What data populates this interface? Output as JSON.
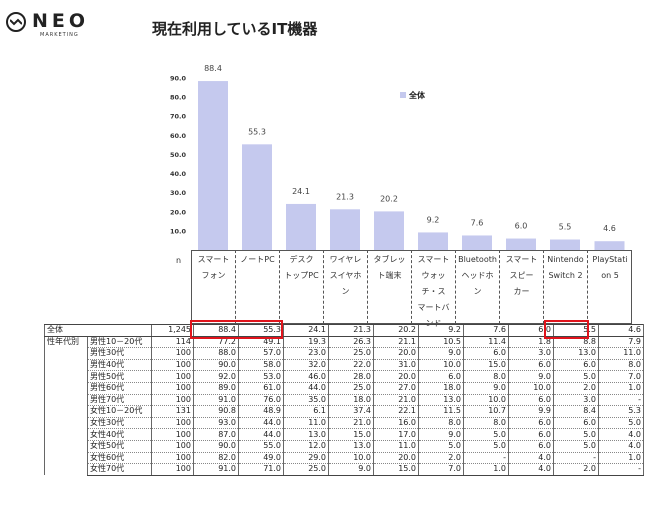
{
  "brand": {
    "name": "NEO",
    "sub": "MARKETING",
    "icon": "neo-wave-icon"
  },
  "title": "現在利用しているIT機器",
  "chart_data": {
    "type": "bar",
    "legend": "全体",
    "legend_position": "top-right",
    "bar_color": "#c5c9ee",
    "highlight_color": "#e0141c",
    "yticks": [
      "10.0",
      "20.0",
      "30.0",
      "40.0",
      "50.0",
      "60.0",
      "70.0",
      "80.0",
      "90.0"
    ],
    "ylim": [
      0,
      90
    ],
    "grid": false,
    "categories": [
      "スマートフォン",
      "ノートPC",
      "デスクトップPC",
      "ワイヤレスイヤホン",
      "タブレット端末",
      "スマートウォッチ・スマートバンド",
      "Bluetoothヘッドホン",
      "スマートスピーカー",
      "Nintendo Switch 2",
      "PlayStation 5"
    ],
    "values": [
      88.4,
      55.3,
      24.1,
      21.3,
      20.2,
      9.2,
      7.6,
      6.0,
      5.5,
      4.6
    ],
    "value_labels": [
      "88.4",
      "55.3",
      "24.1",
      "21.3",
      "20.2",
      "9.2",
      "7.6",
      "6.0",
      "5.5",
      "4.6"
    ]
  },
  "header_cells": {
    "n": "n",
    "cat_lines": [
      [
        "スマート",
        "フォン"
      ],
      [
        "ノートPC"
      ],
      [
        "デスク",
        "トップPC"
      ],
      [
        "ワイヤレ",
        "スイヤホ",
        "ン"
      ],
      [
        "タブレッ",
        "ト端末"
      ],
      [
        "スマート",
        "ウォッ",
        "チ・ス",
        "マートバ",
        "ンド"
      ],
      [
        "Bluetooth",
        "ヘッドホ",
        "ン"
      ],
      [
        "スマート",
        "スピー",
        "カー"
      ],
      [
        "Nintendo",
        "Switch 2"
      ],
      [
        "PlayStati",
        "on 5"
      ]
    ]
  },
  "table": {
    "total": {
      "label": "全体",
      "n": "1,245",
      "values": [
        "88.4",
        "55.3",
        "24.1",
        "21.3",
        "20.2",
        "9.2",
        "7.6",
        "6.0",
        "5.5",
        "4.6"
      ]
    },
    "group_label": "性年代別",
    "rows": [
      {
        "label": "男性10－20代",
        "n": "114",
        "values": [
          "77.2",
          "49.1",
          "19.3",
          "26.3",
          "21.1",
          "10.5",
          "11.4",
          "1.8",
          "8.8",
          "7.9"
        ]
      },
      {
        "label": "男性30代",
        "n": "100",
        "values": [
          "88.0",
          "57.0",
          "23.0",
          "25.0",
          "20.0",
          "9.0",
          "6.0",
          "3.0",
          "13.0",
          "11.0"
        ]
      },
      {
        "label": "男性40代",
        "n": "100",
        "values": [
          "90.0",
          "58.0",
          "32.0",
          "22.0",
          "31.0",
          "10.0",
          "15.0",
          "6.0",
          "6.0",
          "8.0"
        ]
      },
      {
        "label": "男性50代",
        "n": "100",
        "values": [
          "92.0",
          "53.0",
          "46.0",
          "28.0",
          "20.0",
          "6.0",
          "8.0",
          "9.0",
          "5.0",
          "7.0"
        ]
      },
      {
        "label": "男性60代",
        "n": "100",
        "values": [
          "89.0",
          "61.0",
          "44.0",
          "25.0",
          "27.0",
          "18.0",
          "9.0",
          "10.0",
          "2.0",
          "1.0"
        ]
      },
      {
        "label": "男性70代",
        "n": "100",
        "values": [
          "91.0",
          "76.0",
          "35.0",
          "18.0",
          "21.0",
          "13.0",
          "10.0",
          "6.0",
          "3.0",
          "-"
        ]
      },
      {
        "label": "女性10－20代",
        "n": "131",
        "values": [
          "90.8",
          "48.9",
          "6.1",
          "37.4",
          "22.1",
          "11.5",
          "10.7",
          "9.9",
          "8.4",
          "5.3"
        ]
      },
      {
        "label": "女性30代",
        "n": "100",
        "values": [
          "93.0",
          "44.0",
          "11.0",
          "21.0",
          "16.0",
          "8.0",
          "8.0",
          "6.0",
          "6.0",
          "5.0"
        ]
      },
      {
        "label": "女性40代",
        "n": "100",
        "values": [
          "87.0",
          "44.0",
          "13.0",
          "15.0",
          "17.0",
          "9.0",
          "5.0",
          "6.0",
          "5.0",
          "4.0"
        ]
      },
      {
        "label": "女性50代",
        "n": "100",
        "values": [
          "90.0",
          "55.0",
          "12.0",
          "13.0",
          "11.0",
          "5.0",
          "5.0",
          "6.0",
          "5.0",
          "4.0"
        ]
      },
      {
        "label": "女性60代",
        "n": "100",
        "values": [
          "82.0",
          "49.0",
          "29.0",
          "10.0",
          "20.0",
          "2.0",
          "-",
          "4.0",
          "-",
          "1.0"
        ]
      },
      {
        "label": "女性70代",
        "n": "100",
        "values": [
          "91.0",
          "71.0",
          "25.0",
          "9.0",
          "15.0",
          "7.0",
          "1.0",
          "4.0",
          "2.0",
          "-"
        ]
      }
    ]
  }
}
